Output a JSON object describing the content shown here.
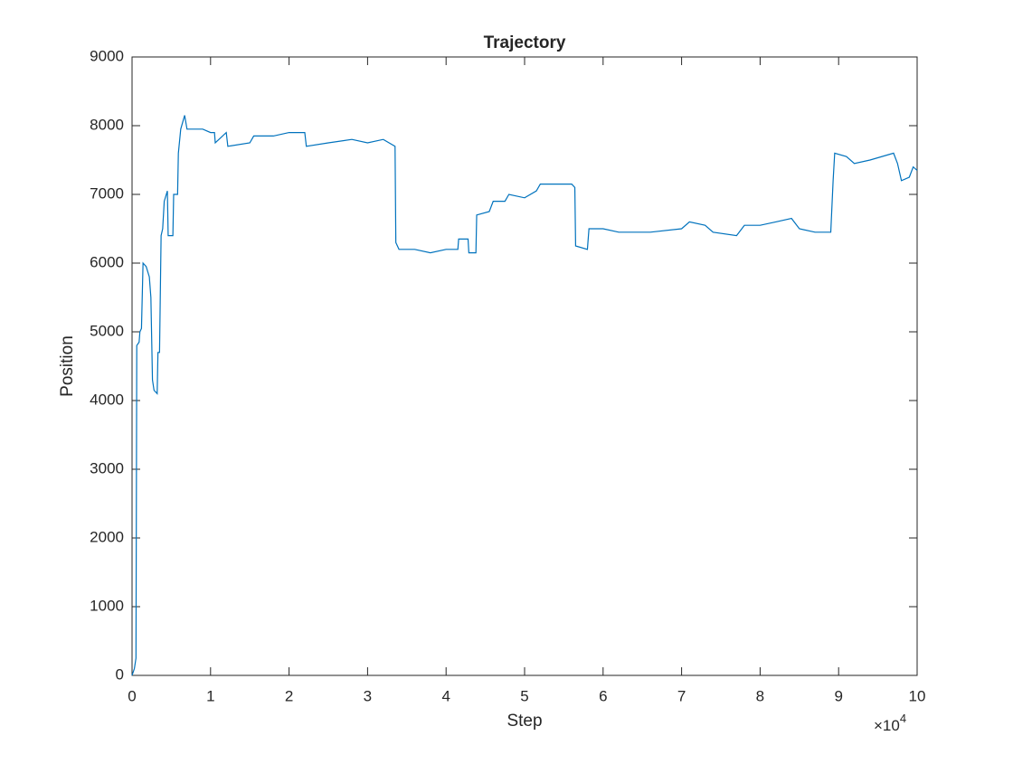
{
  "chart_data": {
    "type": "line",
    "title": "Trajectory",
    "x_label": "Step",
    "y_label": "Position",
    "x_multiplier": "×10",
    "x_multiplier_power": "4",
    "xlim": [
      0,
      100000
    ],
    "ylim": [
      0,
      9000
    ],
    "xticks": [
      0,
      {
        "value": 10000,
        "label": "1"
      },
      {
        "value": 20000,
        "label": "2"
      },
      {
        "value": 30000,
        "label": "3"
      },
      {
        "value": 40000,
        "label": "4"
      },
      {
        "value": 50000,
        "label": "5"
      },
      {
        "value": 60000,
        "label": "6"
      },
      {
        "value": 70000,
        "label": "7"
      },
      {
        "value": 80000,
        "label": "8"
      },
      {
        "value": 90000,
        "label": "9"
      },
      {
        "value": 100000,
        "label": "10"
      }
    ],
    "yticks": [
      0,
      1000,
      2000,
      3000,
      4000,
      5000,
      6000,
      7000,
      8000,
      9000
    ],
    "grid": false,
    "x": [
      0,
      300,
      500,
      600,
      900,
      1000,
      1200,
      1400,
      1800,
      2200,
      2400,
      2600,
      2800,
      3200,
      3300,
      3500,
      3700,
      3900,
      4100,
      4500,
      4600,
      5200,
      5300,
      5800,
      5900,
      6200,
      6700,
      7000,
      9000,
      10000,
      10500,
      10600,
      12000,
      12200,
      15000,
      15500,
      18000,
      20000,
      22000,
      22200,
      25000,
      28000,
      30000,
      32000,
      33500,
      33600,
      34000,
      36000,
      38000,
      40000,
      41500,
      41600,
      42800,
      42900,
      43800,
      43900,
      45500,
      46000,
      47500,
      48000,
      50000,
      51500,
      52000,
      56000,
      56400,
      56500,
      58000,
      58200,
      60000,
      62000,
      66000,
      70000,
      71000,
      73000,
      74000,
      77000,
      78000,
      80000,
      82000,
      84000,
      85000,
      87000,
      89000,
      89300,
      89500,
      91000,
      92000,
      94000,
      97000,
      97500,
      98000,
      99000,
      99500,
      100000
    ],
    "series": [
      {
        "name": "Position",
        "color": "#0072bd",
        "values": [
          0,
          100,
          250,
          4800,
          4850,
          5000,
          5050,
          6000,
          5950,
          5800,
          5500,
          4300,
          4150,
          4100,
          4700,
          4700,
          6400,
          6500,
          6900,
          7050,
          6400,
          6400,
          7000,
          7000,
          7600,
          7950,
          8150,
          7950,
          7950,
          7900,
          7900,
          7750,
          7900,
          7700,
          7750,
          7850,
          7850,
          7900,
          7900,
          7700,
          7750,
          7800,
          7750,
          7800,
          7700,
          6300,
          6200,
          6200,
          6150,
          6200,
          6200,
          6350,
          6350,
          6150,
          6150,
          6700,
          6750,
          6900,
          6900,
          7000,
          6950,
          7050,
          7150,
          7150,
          7100,
          6250,
          6200,
          6500,
          6500,
          6450,
          6450,
          6500,
          6600,
          6550,
          6450,
          6400,
          6550,
          6550,
          6600,
          6650,
          6500,
          6450,
          6450,
          7200,
          7600,
          7550,
          7450,
          7500,
          7600,
          7450,
          7200,
          7250,
          7400,
          7350
        ]
      }
    ]
  }
}
